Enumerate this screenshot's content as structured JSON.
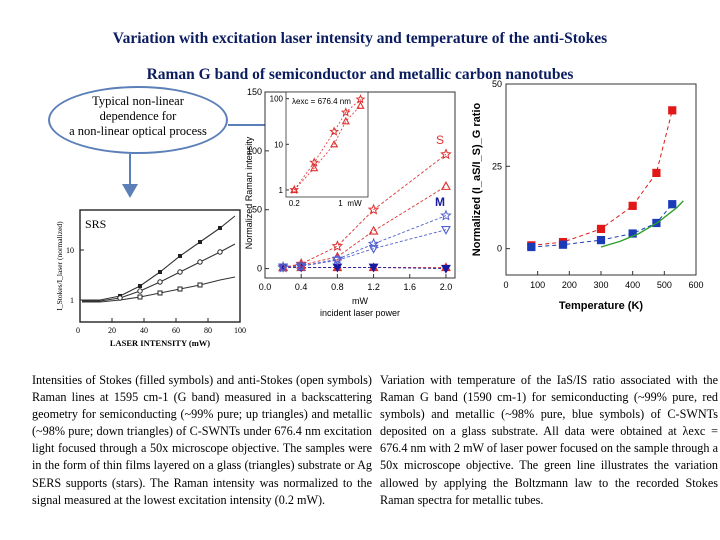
{
  "title": {
    "line1": "Variation with excitation laser intensity and  temperature of the anti-Stokes",
    "line2": "Raman G band of semiconductor and metallic  carbon nanotubes"
  },
  "callout": {
    "text_lines": [
      "Typical non-linear",
      "dependence for",
      "a non-linear optical process"
    ]
  },
  "srs_figure": {
    "label": "SRS",
    "xlabel": "LASER INTENSITY (mW)",
    "ylabel": "I_Stokes/I_laser (normalized)",
    "x_ticks": [
      "0",
      "20",
      "40",
      "60",
      "80",
      "100"
    ],
    "y_ticks": [
      "1",
      "10"
    ]
  },
  "chart_data": [
    {
      "type": "scatter",
      "title": "",
      "xlabel": "mW",
      "xlabel2": "incident laser power",
      "ylabel": "Normalized Raman intensity",
      "xlim": [
        0.0,
        2.1
      ],
      "ylim": [
        -8,
        150
      ],
      "x_ticks": [
        "0.0",
        "0.4",
        "0.8",
        "1.2",
        "1.6",
        "2.0"
      ],
      "y_ticks": [
        "0",
        "50",
        "100",
        "150"
      ],
      "series_labels": [
        "S",
        "M"
      ],
      "series": [
        {
          "name": "S",
          "marker": "filled-triangle-up",
          "color": "#e03030",
          "x": [
            0.2,
            0.4,
            0.8,
            1.2,
            2.0
          ],
          "y": [
            1,
            1,
            1,
            1,
            1
          ]
        },
        {
          "name": "M",
          "marker": "filled-triangle-down",
          "color": "#1a1aa0",
          "x": [
            0.2,
            0.4,
            0.8,
            1.2,
            2.0
          ],
          "y": [
            1,
            1,
            1,
            1,
            0
          ]
        },
        {
          "name": "S",
          "marker": "open-triangle-up",
          "color": "#e03030",
          "x": [
            0.2,
            0.4,
            0.8,
            1.2,
            2.0
          ],
          "y": [
            1,
            3,
            10,
            32,
            70
          ]
        },
        {
          "name": "S",
          "marker": "open-star",
          "color": "#e03030",
          "x": [
            0.2,
            0.4,
            0.8,
            1.2,
            2.0
          ],
          "y": [
            1,
            4,
            19,
            50,
            97
          ]
        },
        {
          "name": "M",
          "marker": "open-triangle-down",
          "color": "#5060d0",
          "x": [
            0.2,
            0.4,
            0.8,
            1.2,
            2.0
          ],
          "y": [
            1,
            2,
            7,
            17,
            33
          ]
        },
        {
          "name": "M",
          "marker": "open-star",
          "color": "#5060d0",
          "x": [
            0.2,
            0.4,
            0.8,
            1.2,
            2.0
          ],
          "y": [
            1,
            2,
            8,
            21,
            45
          ]
        }
      ],
      "inset": {
        "label": "λexc = 676.4 nm",
        "xscale": "log",
        "yscale": "log",
        "x_ticks": [
          "0.2",
          "1",
          "mW"
        ],
        "y_ticks": [
          "1",
          "10",
          "100"
        ],
        "series": [
          {
            "marker": "open-star",
            "color": "#e03030",
            "x": [
              0.2,
              0.4,
              0.8,
              1.2,
              2.0
            ],
            "y": [
              1,
              4,
              19,
              50,
              97
            ]
          },
          {
            "marker": "open-triangle-up",
            "color": "#e03030",
            "x": [
              0.2,
              0.4,
              0.8,
              1.2,
              2.0
            ],
            "y": [
              1,
              3,
              10,
              32,
              70
            ]
          }
        ]
      }
    },
    {
      "type": "scatter",
      "title": "",
      "xlabel": "Temperature (K)",
      "ylabel": "Normalized (I_aS/I_S)_G ratio",
      "xlim": [
        0,
        600
      ],
      "ylim": [
        -8,
        50
      ],
      "x_ticks": [
        "0",
        "100",
        "200",
        "300",
        "400",
        "500",
        "600"
      ],
      "y_ticks": [
        "0",
        "25",
        "50"
      ],
      "series": [
        {
          "name": "semiconducting",
          "marker": "filled-square",
          "color": "#e01818",
          "x": [
            80,
            180,
            300,
            400,
            475,
            525
          ],
          "y": [
            1,
            2,
            6,
            13,
            23,
            42
          ]
        },
        {
          "name": "metallic",
          "marker": "filled-square",
          "color": "#1a3ab8",
          "x": [
            80,
            180,
            300,
            400,
            475,
            525
          ],
          "y": [
            0.5,
            1.2,
            2.6,
            4.6,
            7.8,
            13.5
          ]
        },
        {
          "name": "Boltzmann",
          "type": "line",
          "color": "#2aa02a",
          "x": [
            300,
            360,
            420,
            480,
            540,
            560
          ],
          "y": [
            0.5,
            2.2,
            4.6,
            8.0,
            12.5,
            14.5
          ]
        }
      ]
    }
  ],
  "captions": {
    "left": "Intensities of Stokes (filled symbols) and anti-Stokes (open symbols) Raman lines at 1595 cm-1 (G band) measured in a backscattering geometry for semiconducting (~99% pure; up triangles) and metallic (~98% pure; down triangles) of C-SWNTs under 676.4 nm excitation light focused through a 50x microscope objective. The samples were in the form of thin films layered on a glass (triangles) substrate or Ag SERS supports (stars). The Raman intensity was normalized to the signal measured at the lowest excitation intensity (0.2 mW).",
    "right": "Variation with temperature of the IaS/IS ratio associated with the Raman G band (1590 cm-1) for semiconducting (~99% pure, red symbols) and metallic (~98% pure, blue symbols) of C-SWNTs deposited on a glass substrate. All data were obtained at λexc = 676.4 nm with 2 mW of laser power focused on the sample through a 50x microscope objective. The green line illustrates the variation allowed by applying the Boltzmann law to the recorded Stokes Raman spectra for metallic tubes."
  },
  "colors": {
    "title": "#0b1c60",
    "callout_border": "#5b7fb8",
    "arrow": "#5b7fb8",
    "red": "#e03030",
    "blue": "#1a3ab8",
    "green": "#2aa02a"
  }
}
